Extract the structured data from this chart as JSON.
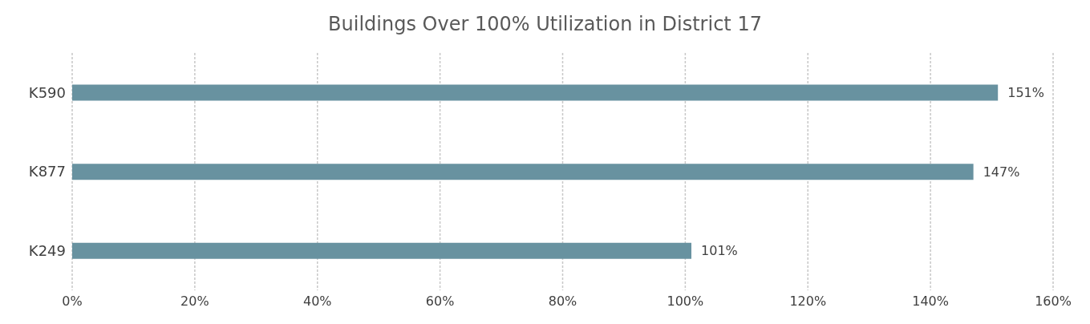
{
  "chart_data": {
    "type": "bar",
    "orientation": "horizontal",
    "title": "Buildings Over 100% Utilization in District 17",
    "categories": [
      "K590",
      "K877",
      "K249"
    ],
    "values": [
      151,
      147,
      101
    ],
    "value_labels": [
      "151%",
      "147%",
      "101%"
    ],
    "color": "#6892a0",
    "xlim": [
      0,
      160
    ],
    "xticks": [
      {
        "value": 0,
        "label": "0%"
      },
      {
        "value": 20,
        "label": "20%"
      },
      {
        "value": 40,
        "label": "40%"
      },
      {
        "value": 60,
        "label": "60%"
      },
      {
        "value": 80,
        "label": "80%"
      },
      {
        "value": 100,
        "label": "100%"
      },
      {
        "value": 120,
        "label": "120%"
      },
      {
        "value": 140,
        "label": "140%"
      },
      {
        "value": 160,
        "label": "160%"
      }
    ],
    "grid": "x",
    "legend": false
  }
}
